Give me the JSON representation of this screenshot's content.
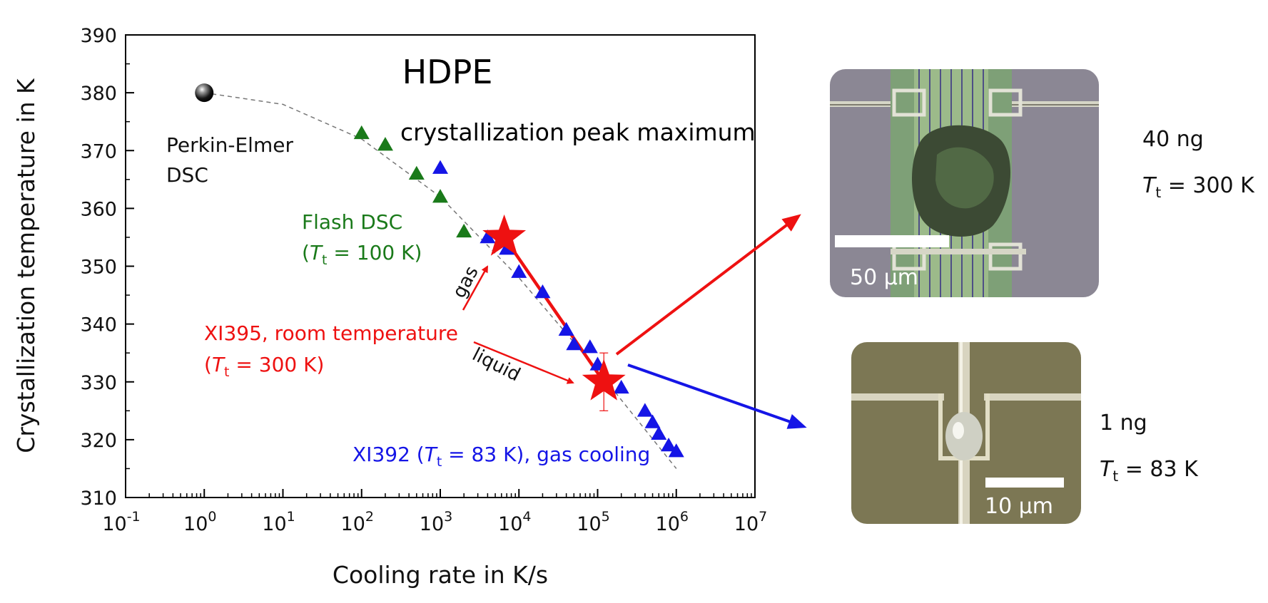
{
  "chart_data": {
    "type": "scatter",
    "title": "HDPE",
    "subtitle": "crystallization peak maximum",
    "xlabel": "Cooling rate in K/s",
    "ylabel": "Crystallization temperature in K",
    "xscale": "log",
    "xlim": [
      0.1,
      10000000
    ],
    "ylim": [
      310,
      390
    ],
    "x_ticks": [
      {
        "base": "10",
        "exp": "-1"
      },
      {
        "base": "10",
        "exp": "0"
      },
      {
        "base": "10",
        "exp": "1"
      },
      {
        "base": "10",
        "exp": "2"
      },
      {
        "base": "10",
        "exp": "3"
      },
      {
        "base": "10",
        "exp": "4"
      },
      {
        "base": "10",
        "exp": "5"
      },
      {
        "base": "10",
        "exp": "6"
      },
      {
        "base": "10",
        "exp": "7"
      }
    ],
    "y_ticks": [
      "310",
      "320",
      "330",
      "340",
      "350",
      "360",
      "370",
      "380",
      "390"
    ],
    "grid": false,
    "series": [
      {
        "key": "dsc",
        "marker": "sphere",
        "color": "#111111",
        "points": [
          [
            1,
            380
          ]
        ]
      },
      {
        "key": "flash",
        "marker": "triangle",
        "color": "#1a7a1a",
        "points": [
          [
            100,
            373
          ],
          [
            200,
            371
          ],
          [
            500,
            366
          ],
          [
            1000,
            362
          ],
          [
            2000,
            356
          ]
        ]
      },
      {
        "key": "xi392",
        "marker": "triangle",
        "color": "#1515e6",
        "points": [
          [
            1000,
            367
          ],
          [
            4000,
            355
          ],
          [
            7000,
            353
          ],
          [
            10000,
            349
          ],
          [
            20000,
            345.5
          ],
          [
            40000,
            339
          ],
          [
            50000,
            336.5
          ],
          [
            80000,
            336
          ],
          [
            100000,
            333
          ],
          [
            200000,
            329
          ],
          [
            400000,
            325
          ],
          [
            500000,
            323
          ],
          [
            600000,
            321
          ],
          [
            800000,
            319
          ],
          [
            1000000,
            318
          ]
        ]
      },
      {
        "key": "xi395",
        "marker": "star",
        "color": "#ee1111",
        "points": [
          [
            6500,
            355
          ],
          [
            120000,
            330
          ]
        ],
        "error_bar": [
          325,
          335
        ]
      }
    ],
    "fit_curve": {
      "x": [
        1,
        10,
        100,
        1000,
        10000,
        100000,
        1000000
      ],
      "y": [
        380,
        378,
        372,
        362,
        348,
        332,
        315
      ]
    },
    "annotations": {
      "dsc_label": [
        "Perkin-Elmer",
        "DSC"
      ],
      "flash_label": "Flash DSC",
      "flash_tt": {
        "open": "(",
        "t": "T",
        "sub": "t",
        "rest": " = 100 K)"
      },
      "xi395_label": "XI395, room temperature",
      "xi395_tt": {
        "open": "(",
        "t": "T",
        "sub": "t",
        "rest": " = 300 K)"
      },
      "xi392_label": {
        "prefix": "XI392 (",
        "t": "T",
        "sub": "t",
        "rest": " = 83 K), gas cooling"
      },
      "gas": "gas",
      "liquid": "liquid"
    },
    "colors": {
      "red": "#ee1111",
      "blue": "#1515e6",
      "green": "#1a7a1a"
    }
  },
  "side_panels": [
    {
      "key": "top",
      "scale_bar": "50 μm",
      "mass": "40 ng",
      "tt": {
        "t": "T",
        "sub": "t",
        "rest": " = 300 K"
      }
    },
    {
      "key": "bottom",
      "scale_bar": "10 μm",
      "mass": "1 ng",
      "tt": {
        "t": "T",
        "sub": "t",
        "rest": " = 83 K"
      }
    }
  ]
}
